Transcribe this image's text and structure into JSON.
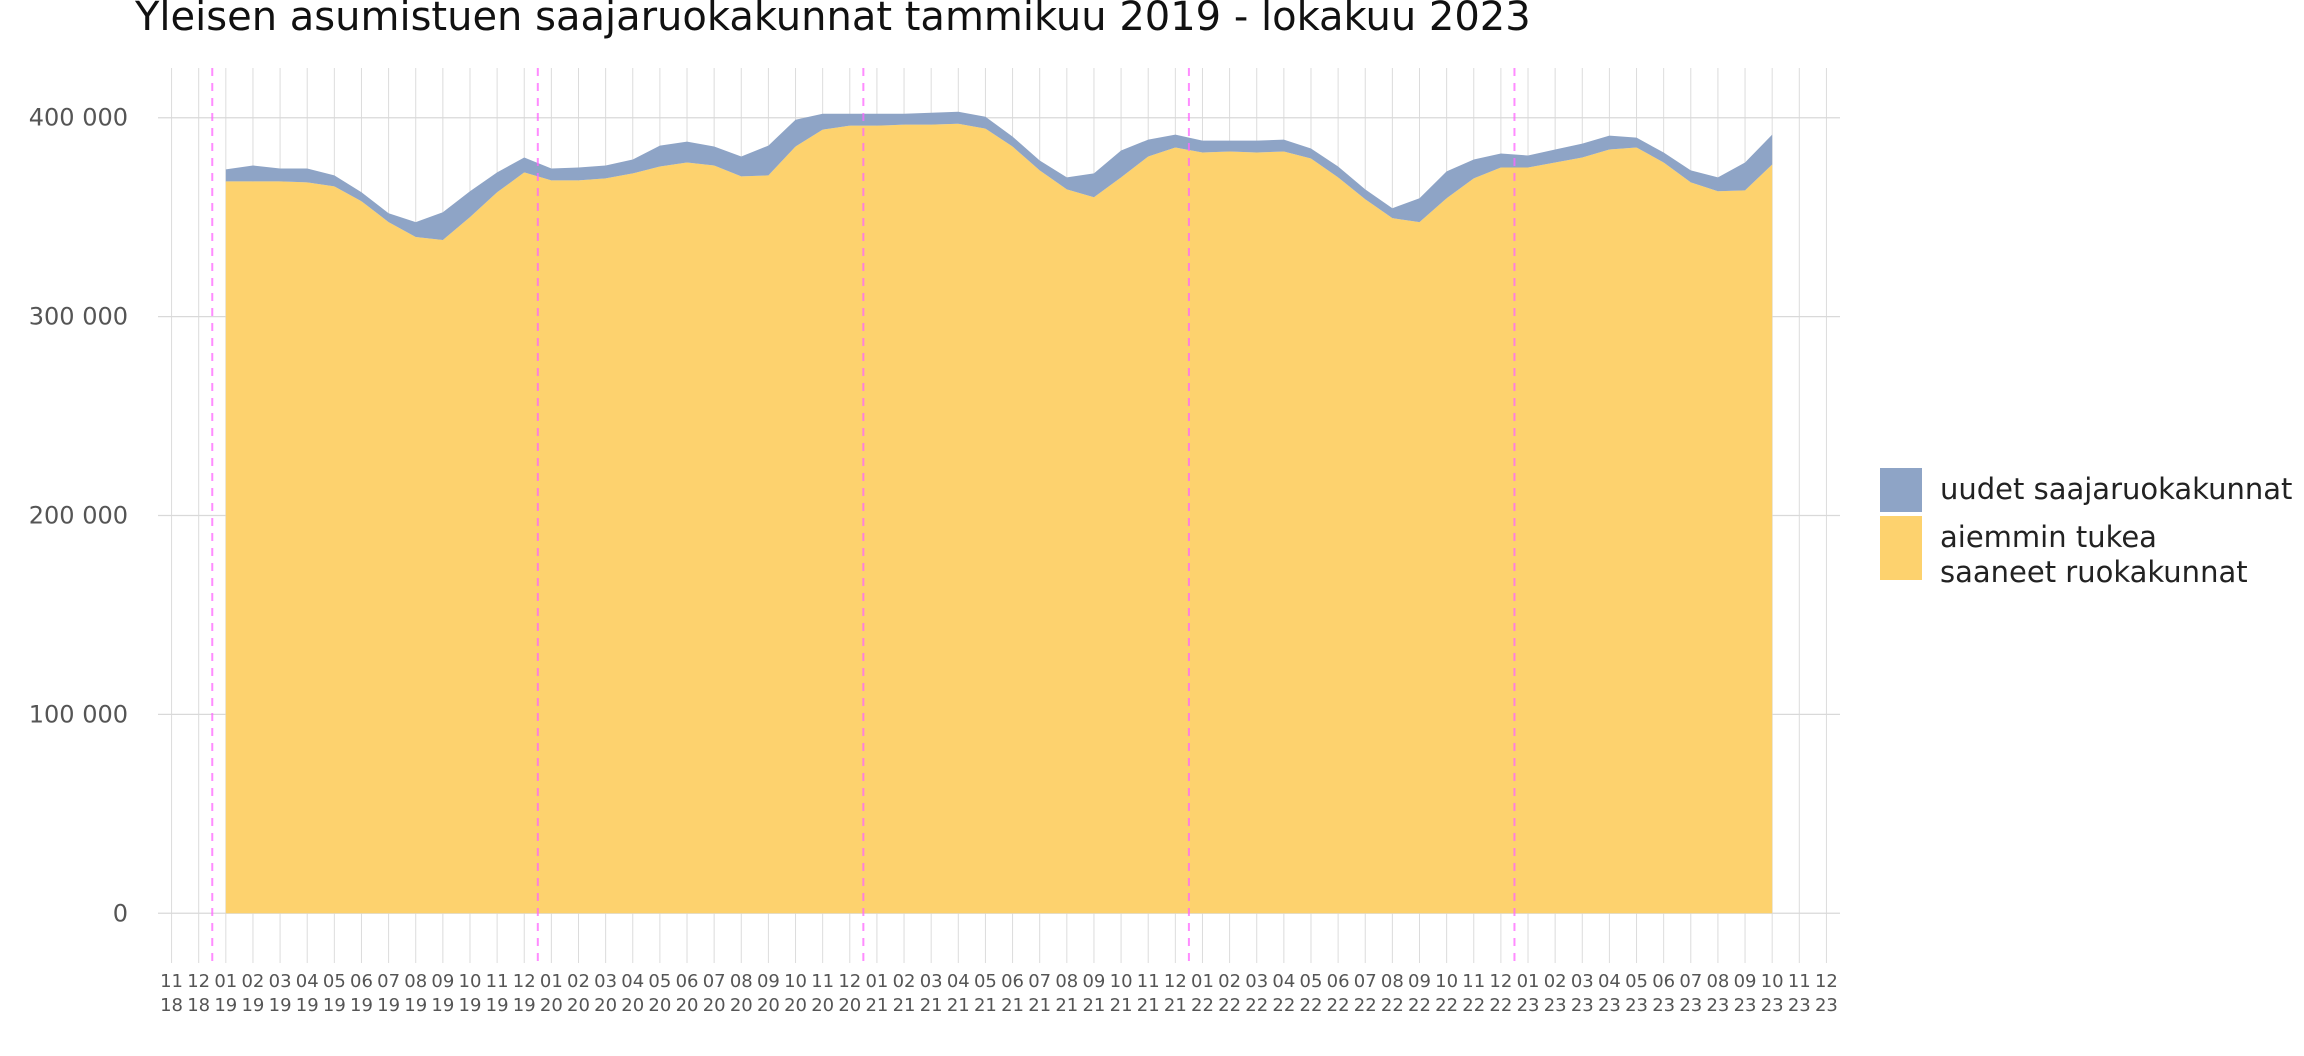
{
  "chart_data": {
    "type": "area",
    "title": "Yleisen asumistuen saajaruokakunnat tammikuu 2019 - lokakuu 2023",
    "xlabel": "",
    "ylabel": "",
    "ylim": [
      -25000,
      425000
    ],
    "yticks": [
      0,
      100000,
      200000,
      300000,
      400000
    ],
    "ytick_labels": [
      "0",
      "100 000",
      "200 000",
      "300 000",
      "400 000"
    ],
    "x_axis_months": [
      "11/18",
      "12/18",
      "01/19",
      "02/19",
      "03/19",
      "04/19",
      "05/19",
      "06/19",
      "07/19",
      "08/19",
      "09/19",
      "10/19",
      "11/19",
      "12/19",
      "01/20",
      "02/20",
      "03/20",
      "04/20",
      "05/20",
      "06/20",
      "07/20",
      "08/20",
      "09/20",
      "10/20",
      "11/20",
      "12/20",
      "01/21",
      "02/21",
      "03/21",
      "04/21",
      "05/21",
      "06/21",
      "07/21",
      "08/21",
      "09/21",
      "10/21",
      "11/21",
      "12/21",
      "01/22",
      "02/22",
      "03/22",
      "04/22",
      "05/22",
      "06/22",
      "07/22",
      "08/22",
      "09/22",
      "10/22",
      "11/22",
      "12/22",
      "01/23",
      "02/23",
      "03/23",
      "04/23",
      "05/23",
      "06/23",
      "07/23",
      "08/23",
      "09/23",
      "10/23",
      "11/23",
      "12/23"
    ],
    "x_tick_labels": {
      "month": [
        "11",
        "12",
        "01",
        "02",
        "03",
        "04",
        "05",
        "06",
        "07",
        "08",
        "09",
        "10",
        "11",
        "12",
        "01",
        "02",
        "03",
        "04",
        "05",
        "06",
        "07",
        "08",
        "09",
        "10",
        "11",
        "12",
        "01",
        "02",
        "03",
        "04",
        "05",
        "06",
        "07",
        "08",
        "09",
        "10",
        "11",
        "12",
        "01",
        "02",
        "03",
        "04",
        "05",
        "06",
        "07",
        "08",
        "09",
        "10",
        "11",
        "12",
        "01",
        "02",
        "03",
        "04",
        "05",
        "06",
        "07",
        "08",
        "09",
        "10",
        "11",
        "12"
      ],
      "year": [
        "18",
        "18",
        "19",
        "19",
        "19",
        "19",
        "19",
        "19",
        "19",
        "19",
        "19",
        "19",
        "19",
        "19",
        "20",
        "20",
        "20",
        "20",
        "20",
        "20",
        "20",
        "20",
        "20",
        "20",
        "20",
        "20",
        "21",
        "21",
        "21",
        "21",
        "21",
        "21",
        "21",
        "21",
        "21",
        "21",
        "21",
        "21",
        "22",
        "22",
        "22",
        "22",
        "22",
        "22",
        "22",
        "22",
        "22",
        "22",
        "22",
        "22",
        "23",
        "23",
        "23",
        "23",
        "23",
        "23",
        "23",
        "23",
        "23",
        "23",
        "23",
        "23"
      ]
    },
    "year_boundaries": [
      "12/18 - 01/19",
      "12/19 - 01/20",
      "12/20 - 01/21",
      "12/21 - 01/22",
      "12/22 - 01/23"
    ],
    "grid": true,
    "legend_position": "right",
    "x": [
      "01/19",
      "02/19",
      "03/19",
      "04/19",
      "05/19",
      "06/19",
      "07/19",
      "08/19",
      "09/19",
      "10/19",
      "11/19",
      "12/19",
      "01/20",
      "02/20",
      "03/20",
      "04/20",
      "05/20",
      "06/20",
      "07/20",
      "08/20",
      "09/20",
      "10/20",
      "11/20",
      "12/20",
      "01/21",
      "02/21",
      "03/21",
      "04/21",
      "05/21",
      "06/21",
      "07/21",
      "08/21",
      "09/21",
      "10/21",
      "11/21",
      "12/21",
      "01/22",
      "02/22",
      "03/22",
      "04/22",
      "05/22",
      "06/22",
      "07/22",
      "08/22",
      "09/22",
      "10/22",
      "11/22",
      "12/22",
      "01/23",
      "02/23",
      "03/23",
      "04/23",
      "05/23",
      "06/23",
      "07/23",
      "08/23",
      "09/23",
      "10/23"
    ],
    "series": [
      {
        "name": "aiemmin tukea saaneet ruokakunnat",
        "legend_lines": [
          "aiemmin tukea",
          "saaneet ruokakunnat"
        ],
        "color": "#fdd26e",
        "values": [
          368000,
          368000,
          368000,
          367500,
          365500,
          358000,
          347500,
          340000,
          338500,
          350000,
          362500,
          372500,
          368500,
          368500,
          369500,
          372000,
          375500,
          377500,
          376000,
          370500,
          371000,
          385500,
          394000,
          396000,
          396000,
          396500,
          396500,
          397000,
          394500,
          385500,
          373500,
          364000,
          360000,
          370000,
          380500,
          385000,
          382500,
          383000,
          382500,
          383000,
          379500,
          370000,
          359000,
          349500,
          347500,
          359500,
          369500,
          375000,
          375000,
          377500,
          380000,
          384000,
          385000,
          377500,
          367500,
          363000,
          363500,
          376500
        ]
      },
      {
        "name": "uudet saajaruokakunnat",
        "legend_lines": [
          "uudet saajaruokakunnat"
        ],
        "color": "#8ea4c6",
        "values": [
          6000,
          8000,
          6500,
          7000,
          5500,
          4500,
          4500,
          7500,
          14000,
          13000,
          10000,
          7500,
          6000,
          6500,
          6500,
          7000,
          10500,
          10500,
          9500,
          10000,
          15000,
          13500,
          8000,
          6000,
          6000,
          5500,
          6000,
          6000,
          6000,
          5000,
          5000,
          6000,
          12000,
          13500,
          8500,
          6500,
          6000,
          5500,
          6000,
          6000,
          5000,
          5500,
          5000,
          5000,
          12000,
          13500,
          9500,
          7000,
          6000,
          6500,
          7000,
          7000,
          5000,
          5000,
          6000,
          7000,
          14000,
          15000
        ]
      }
    ]
  }
}
